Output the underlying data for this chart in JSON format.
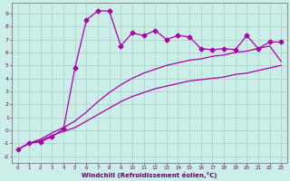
{
  "xlabel": "Windchill (Refroidissement éolien,°C)",
  "bg_color": "#cceee8",
  "grid_color": "#aacccc",
  "line_color": "#aa00aa",
  "xlim": [
    -0.5,
    23.5
  ],
  "ylim": [
    -2.5,
    9.8
  ],
  "xticks": [
    0,
    1,
    2,
    3,
    4,
    5,
    6,
    7,
    8,
    9,
    10,
    11,
    12,
    13,
    14,
    15,
    16,
    17,
    18,
    19,
    20,
    21,
    22,
    23
  ],
  "yticks": [
    -2,
    -1,
    0,
    1,
    2,
    3,
    4,
    5,
    6,
    7,
    8,
    9
  ],
  "line1_x": [
    0,
    1,
    2,
    3,
    4,
    5,
    6,
    7,
    8,
    9,
    10,
    11,
    12,
    13,
    14,
    15,
    16,
    17,
    18,
    19,
    20,
    21,
    22,
    23
  ],
  "line1_y": [
    -1.5,
    -1.0,
    -0.8,
    -0.4,
    -0.1,
    0.2,
    0.7,
    1.2,
    1.7,
    2.2,
    2.6,
    2.9,
    3.2,
    3.4,
    3.6,
    3.8,
    3.9,
    4.0,
    4.1,
    4.3,
    4.4,
    4.6,
    4.8,
    5.0
  ],
  "line2_x": [
    0,
    1,
    2,
    3,
    4,
    5,
    6,
    7,
    8,
    9,
    10,
    11,
    12,
    13,
    14,
    15,
    16,
    17,
    18,
    19,
    20,
    21,
    22,
    23
  ],
  "line2_y": [
    -1.5,
    -1.0,
    -0.7,
    -0.2,
    0.2,
    0.7,
    1.4,
    2.2,
    2.9,
    3.5,
    4.0,
    4.4,
    4.7,
    5.0,
    5.2,
    5.4,
    5.5,
    5.7,
    5.8,
    6.0,
    6.1,
    6.3,
    6.5,
    5.3
  ],
  "curve_x": [
    0,
    1,
    2,
    3,
    4,
    5,
    6,
    7,
    8,
    9,
    10,
    11,
    12,
    13,
    14,
    15,
    16,
    17,
    18,
    19,
    20,
    21,
    22,
    23
  ],
  "curve_y": [
    -1.5,
    -1.0,
    -0.9,
    -0.5,
    0.1,
    4.8,
    8.5,
    9.2,
    9.2,
    6.5,
    7.5,
    7.3,
    7.7,
    7.0,
    7.3,
    7.2,
    6.3,
    6.2,
    6.3,
    6.2,
    7.3,
    6.3,
    6.8,
    6.8
  ],
  "marker": "D",
  "marker_size": 2.5,
  "lw": 0.9
}
